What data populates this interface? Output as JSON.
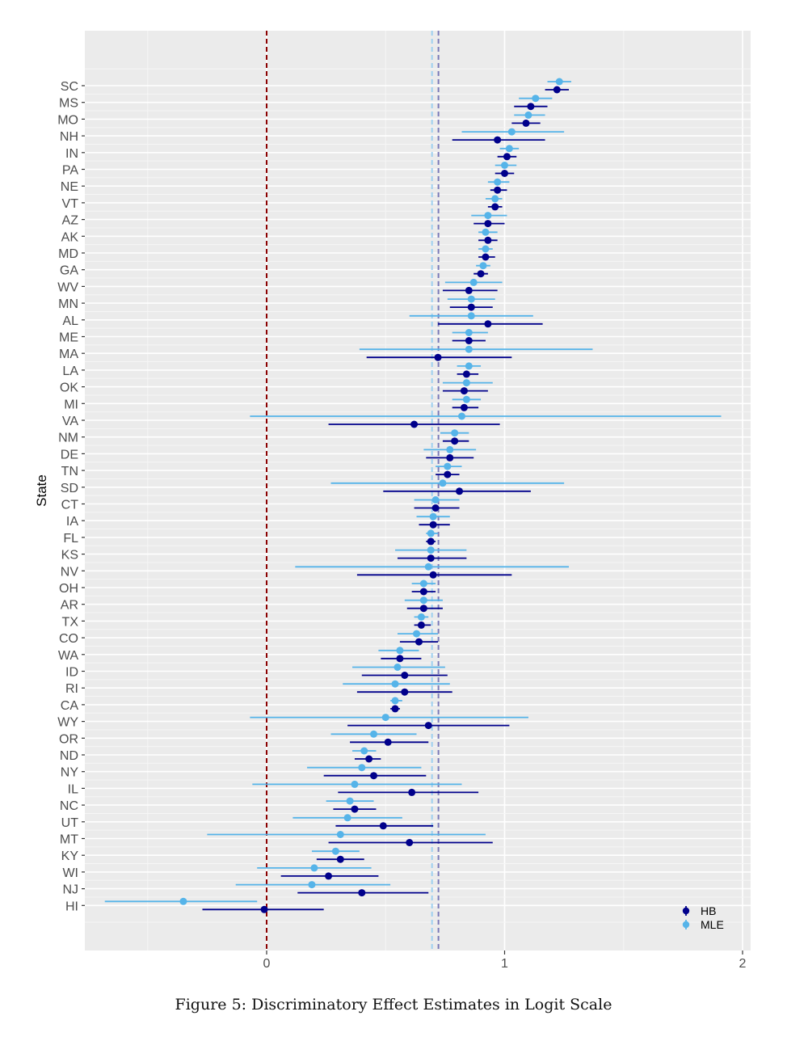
{
  "caption": "Figure 5: Discriminatory Effect Estimates in Logit Scale",
  "chart_data": {
    "type": "scatter",
    "subtype": "forest-plot-with-intervals",
    "ylabel": "State",
    "xlabel": "",
    "xlim": [
      -0.76,
      2.03
    ],
    "xticks": [
      0,
      1,
      2
    ],
    "xtick_labels": [
      "0",
      "1",
      "2"
    ],
    "grid": true,
    "legend_placement": "bottom-right",
    "colors": {
      "HB": "#00008b",
      "MLE": "#56b4e9",
      "zero_line": "#8b0000",
      "mean_HB": "#7a7ab8",
      "mean_MLE": "#9ed0f0",
      "panel": "#ebebeb",
      "grid": "#ffffff"
    },
    "reference_lines": [
      {
        "x": 0,
        "color": "#8b0000",
        "style": "dashed"
      },
      {
        "x": 0.695,
        "color": "#9ed0f0",
        "style": "dashed"
      },
      {
        "x": 0.722,
        "color": "#7a7ab8",
        "style": "dashed"
      }
    ],
    "categories": [
      "SC",
      "MS",
      "MO",
      "NH",
      "IN",
      "PA",
      "NE",
      "VT",
      "AZ",
      "AK",
      "MD",
      "GA",
      "WV",
      "MN",
      "AL",
      "ME",
      "MA",
      "LA",
      "OK",
      "MI",
      "VA",
      "NM",
      "DE",
      "TN",
      "SD",
      "CT",
      "IA",
      "FL",
      "KS",
      "NV",
      "OH",
      "AR",
      "TX",
      "CO",
      "WA",
      "ID",
      "RI",
      "CA",
      "WY",
      "OR",
      "ND",
      "NY",
      "IL",
      "NC",
      "UT",
      "MT",
      "KY",
      "WI",
      "NJ",
      "HI"
    ],
    "series": [
      {
        "name": "HB",
        "points": [
          [
            1.22,
            1.17,
            1.27
          ],
          [
            1.11,
            1.04,
            1.18
          ],
          [
            1.09,
            1.03,
            1.15
          ],
          [
            0.97,
            0.78,
            1.17
          ],
          [
            1.01,
            0.97,
            1.05
          ],
          [
            1.0,
            0.96,
            1.04
          ],
          [
            0.97,
            0.94,
            1.01
          ],
          [
            0.96,
            0.93,
            0.99
          ],
          [
            0.93,
            0.87,
            1.0
          ],
          [
            0.93,
            0.89,
            0.97
          ],
          [
            0.92,
            0.89,
            0.96
          ],
          [
            0.9,
            0.87,
            0.93
          ],
          [
            0.85,
            0.74,
            0.97
          ],
          [
            0.86,
            0.77,
            0.95
          ],
          [
            0.93,
            0.72,
            1.16
          ],
          [
            0.85,
            0.78,
            0.92
          ],
          [
            0.72,
            0.42,
            1.03
          ],
          [
            0.84,
            0.8,
            0.89
          ],
          [
            0.83,
            0.74,
            0.93
          ],
          [
            0.83,
            0.78,
            0.89
          ],
          [
            0.62,
            0.26,
            0.98
          ],
          [
            0.79,
            0.74,
            0.85
          ],
          [
            0.77,
            0.67,
            0.87
          ],
          [
            0.76,
            0.71,
            0.81
          ],
          [
            0.81,
            0.49,
            1.11
          ],
          [
            0.71,
            0.62,
            0.81
          ],
          [
            0.7,
            0.64,
            0.77
          ],
          [
            0.69,
            0.67,
            0.71
          ],
          [
            0.69,
            0.55,
            0.84
          ],
          [
            0.7,
            0.38,
            1.03
          ],
          [
            0.66,
            0.61,
            0.71
          ],
          [
            0.66,
            0.59,
            0.74
          ],
          [
            0.65,
            0.62,
            0.69
          ],
          [
            0.64,
            0.56,
            0.72
          ],
          [
            0.56,
            0.48,
            0.65
          ],
          [
            0.58,
            0.4,
            0.76
          ],
          [
            0.58,
            0.38,
            0.78
          ],
          [
            0.54,
            0.52,
            0.56
          ],
          [
            0.68,
            0.34,
            1.02
          ],
          [
            0.51,
            0.35,
            0.68
          ],
          [
            0.43,
            0.37,
            0.48
          ],
          [
            0.45,
            0.24,
            0.67
          ],
          [
            0.61,
            0.3,
            0.89
          ],
          [
            0.37,
            0.28,
            0.46
          ],
          [
            0.49,
            0.29,
            0.7
          ],
          [
            0.6,
            0.26,
            0.95
          ],
          [
            0.31,
            0.21,
            0.41
          ],
          [
            0.26,
            0.06,
            0.47
          ],
          [
            0.4,
            0.13,
            0.68
          ],
          [
            -0.01,
            -0.27,
            0.24
          ]
        ]
      },
      {
        "name": "MLE",
        "points": [
          [
            1.23,
            1.18,
            1.28
          ],
          [
            1.13,
            1.06,
            1.2
          ],
          [
            1.1,
            1.04,
            1.17
          ],
          [
            1.03,
            0.82,
            1.25
          ],
          [
            1.02,
            0.98,
            1.06
          ],
          [
            1.0,
            0.96,
            1.05
          ],
          [
            0.97,
            0.93,
            1.02
          ],
          [
            0.96,
            0.92,
            0.99
          ],
          [
            0.93,
            0.86,
            1.01
          ],
          [
            0.92,
            0.89,
            0.97
          ],
          [
            0.92,
            0.89,
            0.95
          ],
          [
            0.91,
            0.88,
            0.94
          ],
          [
            0.87,
            0.75,
            0.99
          ],
          [
            0.86,
            0.76,
            0.96
          ],
          [
            0.86,
            0.6,
            1.12
          ],
          [
            0.85,
            0.78,
            0.93
          ],
          [
            0.85,
            0.39,
            1.37
          ],
          [
            0.85,
            0.8,
            0.9
          ],
          [
            0.84,
            0.74,
            0.95
          ],
          [
            0.84,
            0.78,
            0.9
          ],
          [
            0.82,
            -0.07,
            1.91
          ],
          [
            0.79,
            0.73,
            0.85
          ],
          [
            0.77,
            0.66,
            0.88
          ],
          [
            0.76,
            0.71,
            0.82
          ],
          [
            0.74,
            0.27,
            1.25
          ],
          [
            0.71,
            0.62,
            0.81
          ],
          [
            0.7,
            0.63,
            0.77
          ],
          [
            0.69,
            0.67,
            0.72
          ],
          [
            0.69,
            0.54,
            0.84
          ],
          [
            0.68,
            0.12,
            1.27
          ],
          [
            0.66,
            0.61,
            0.71
          ],
          [
            0.66,
            0.58,
            0.74
          ],
          [
            0.65,
            0.62,
            0.68
          ],
          [
            0.63,
            0.55,
            0.72
          ],
          [
            0.56,
            0.47,
            0.64
          ],
          [
            0.55,
            0.36,
            0.75
          ],
          [
            0.54,
            0.32,
            0.77
          ],
          [
            0.54,
            0.52,
            0.57
          ],
          [
            0.5,
            -0.07,
            1.1
          ],
          [
            0.45,
            0.27,
            0.63
          ],
          [
            0.41,
            0.36,
            0.46
          ],
          [
            0.4,
            0.17,
            0.65
          ],
          [
            0.37,
            -0.06,
            0.82
          ],
          [
            0.35,
            0.25,
            0.45
          ],
          [
            0.34,
            0.11,
            0.57
          ],
          [
            0.31,
            -0.25,
            0.92
          ],
          [
            0.29,
            0.19,
            0.39
          ],
          [
            0.2,
            -0.04,
            0.44
          ],
          [
            0.19,
            -0.13,
            0.52
          ],
          [
            -0.35,
            -0.68,
            -0.04
          ]
        ]
      }
    ]
  }
}
